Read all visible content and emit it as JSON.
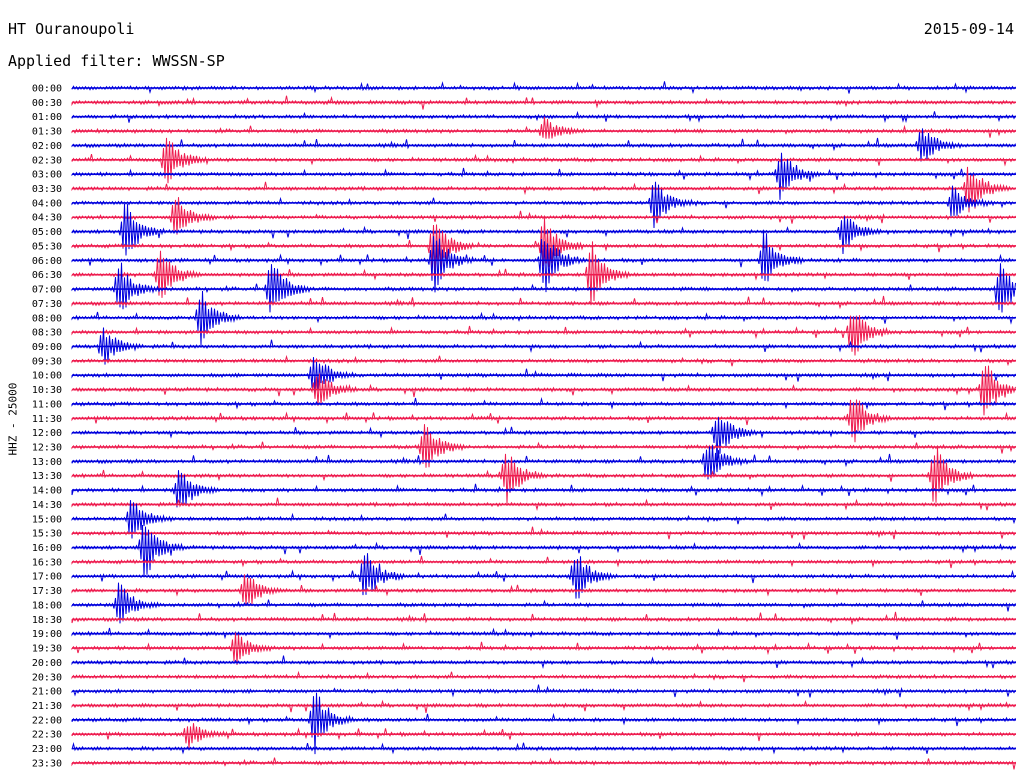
{
  "header": {
    "station": "HT Ouranoupoli",
    "date": "2015-09-14",
    "filter": "Applied filter: WWSSN-SP"
  },
  "axis": {
    "ylabel": "HHZ - 25000"
  },
  "colors": {
    "even_trace": "#0000dd",
    "odd_trace": "#ee1c4f",
    "text": "#000000"
  },
  "chart_data": {
    "type": "line",
    "title": "HT Ouranoupoli",
    "subtitle": "Applied filter: WWSSN-SP",
    "ylabel": "HHZ - 25000",
    "rows": [
      "00:00",
      "00:30",
      "01:00",
      "01:30",
      "02:00",
      "02:30",
      "03:00",
      "03:30",
      "04:00",
      "04:30",
      "05:00",
      "05:30",
      "06:00",
      "06:30",
      "07:00",
      "07:30",
      "08:00",
      "08:30",
      "09:00",
      "09:30",
      "10:00",
      "10:30",
      "11:00",
      "11:30",
      "12:00",
      "12:30",
      "13:00",
      "13:30",
      "14:00",
      "14:30",
      "15:00",
      "15:30",
      "16:00",
      "16:30",
      "17:00",
      "17:30",
      "18:00",
      "18:30",
      "19:00",
      "19:30",
      "20:00",
      "20:30",
      "21:00",
      "21:30",
      "22:00",
      "22:30",
      "23:00",
      "23:30"
    ],
    "row_duration_minutes": 30,
    "events": [
      {
        "row": "01:30",
        "minute": 15,
        "amplitude": 0.4
      },
      {
        "row": "02:00",
        "minute": 27,
        "amplitude": 0.6
      },
      {
        "row": "02:30",
        "minute": 3,
        "amplitude": 0.8
      },
      {
        "row": "03:00",
        "minute": 22.5,
        "amplitude": 0.8
      },
      {
        "row": "03:30",
        "minute": 28.5,
        "amplitude": 0.8
      },
      {
        "row": "04:00",
        "minute": 18.5,
        "amplitude": 0.7
      },
      {
        "row": "04:00",
        "minute": 28,
        "amplitude": 0.6
      },
      {
        "row": "04:30",
        "minute": 3.3,
        "amplitude": 0.7
      },
      {
        "row": "05:00",
        "minute": 1.7,
        "amplitude": 0.9
      },
      {
        "row": "05:00",
        "minute": 24.5,
        "amplitude": 0.7
      },
      {
        "row": "05:30",
        "minute": 11.5,
        "amplitude": 1.0
      },
      {
        "row": "05:30",
        "minute": 15,
        "amplitude": 0.9
      },
      {
        "row": "06:00",
        "minute": 11.5,
        "amplitude": 1.0
      },
      {
        "row": "06:00",
        "minute": 15,
        "amplitude": 1.0
      },
      {
        "row": "06:00",
        "minute": 22,
        "amplitude": 0.9
      },
      {
        "row": "06:30",
        "minute": 2.8,
        "amplitude": 0.9
      },
      {
        "row": "06:30",
        "minute": 16.5,
        "amplitude": 1.0
      },
      {
        "row": "07:00",
        "minute": 1.5,
        "amplitude": 0.9
      },
      {
        "row": "07:00",
        "minute": 6.3,
        "amplitude": 1.0
      },
      {
        "row": "07:00",
        "minute": 29.5,
        "amplitude": 0.8
      },
      {
        "row": "08:00",
        "minute": 4.1,
        "amplitude": 0.8
      },
      {
        "row": "08:30",
        "minute": 24.8,
        "amplitude": 0.8
      },
      {
        "row": "09:00",
        "minute": 1,
        "amplitude": 0.6
      },
      {
        "row": "10:00",
        "minute": 7.7,
        "amplitude": 0.7
      },
      {
        "row": "10:30",
        "minute": 7.8,
        "amplitude": 0.6
      },
      {
        "row": "10:30",
        "minute": 29,
        "amplitude": 0.9
      },
      {
        "row": "11:30",
        "minute": 24.8,
        "amplitude": 0.8
      },
      {
        "row": "12:00",
        "minute": 20.5,
        "amplitude": 0.8
      },
      {
        "row": "12:30",
        "minute": 11.2,
        "amplitude": 0.8
      },
      {
        "row": "13:00",
        "minute": 20.2,
        "amplitude": 0.7
      },
      {
        "row": "13:30",
        "minute": 13.8,
        "amplitude": 0.8
      },
      {
        "row": "13:30",
        "minute": 27.4,
        "amplitude": 1.0
      },
      {
        "row": "14:00",
        "minute": 3.4,
        "amplitude": 0.7
      },
      {
        "row": "15:00",
        "minute": 1.9,
        "amplitude": 0.7
      },
      {
        "row": "16:00",
        "minute": 2.3,
        "amplitude": 1.0
      },
      {
        "row": "17:00",
        "minute": 9.3,
        "amplitude": 0.8
      },
      {
        "row": "17:00",
        "minute": 16,
        "amplitude": 0.8
      },
      {
        "row": "17:30",
        "minute": 5.5,
        "amplitude": 0.6
      },
      {
        "row": "18:00",
        "minute": 1.5,
        "amplitude": 0.7
      },
      {
        "row": "19:30",
        "minute": 5.2,
        "amplitude": 0.5
      },
      {
        "row": "22:00",
        "minute": 7.7,
        "amplitude": 1.0
      },
      {
        "row": "22:30",
        "minute": 3.7,
        "amplitude": 0.4
      }
    ]
  }
}
